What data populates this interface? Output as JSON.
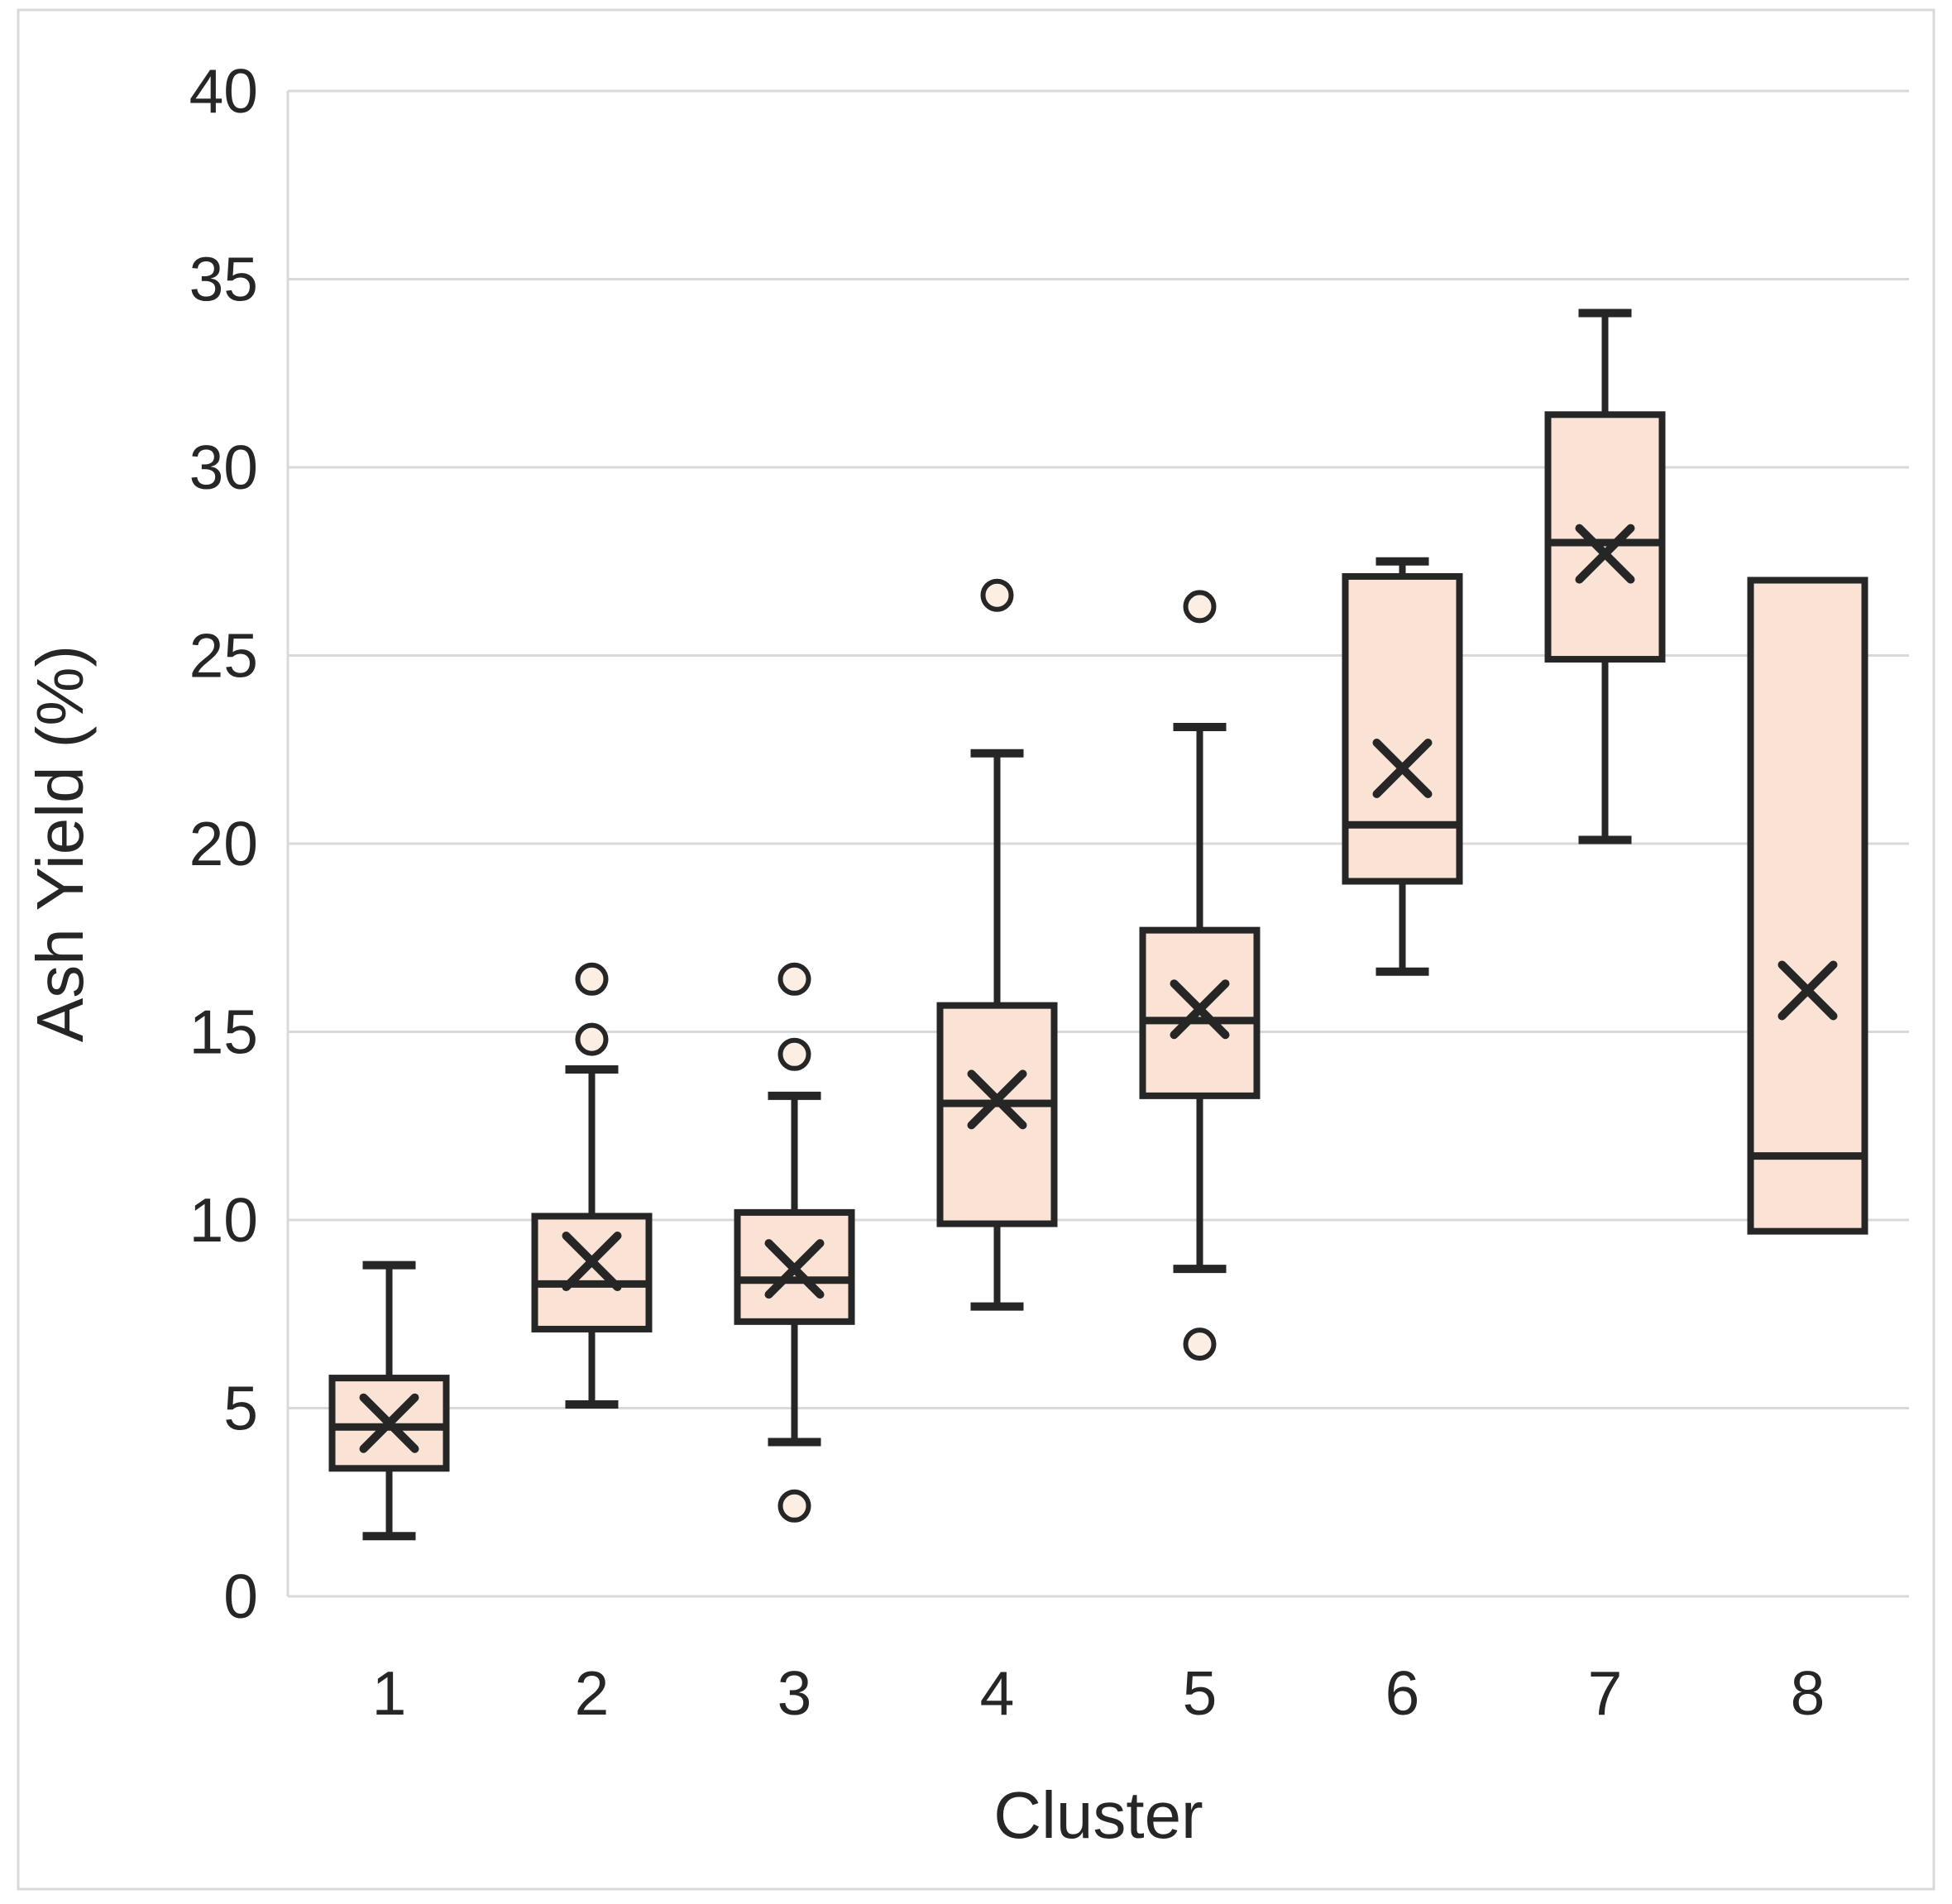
{
  "figure": {
    "background": "#FFFFFF",
    "border_color": "#D9D9D9",
    "grid_color": "#D9D9D9",
    "text_color": "#262626",
    "box_fill": "#FAE3D5",
    "box_stroke": "#262626",
    "outlier_fill": "#FCEEE3"
  },
  "chart_data": {
    "type": "boxplot",
    "title": "",
    "xlabel": "Cluster",
    "ylabel": "Ash Yield (%)",
    "ylim": [
      0,
      40
    ],
    "yticks": [
      0,
      5,
      10,
      15,
      20,
      25,
      30,
      35,
      40
    ],
    "grid": true,
    "legend_position": "none",
    "categories": [
      "1",
      "2",
      "3",
      "4",
      "5",
      "6",
      "7",
      "8"
    ],
    "series": [
      {
        "cluster": "1",
        "whisker_low": 1.6,
        "q1": 3.4,
        "median": 4.5,
        "q3": 5.8,
        "whisker_high": 8.8,
        "mean": 4.6,
        "outliers": []
      },
      {
        "cluster": "2",
        "whisker_low": 5.1,
        "q1": 7.1,
        "median": 8.3,
        "q3": 10.1,
        "whisker_high": 14.0,
        "mean": 8.9,
        "outliers": [
          14.8,
          16.4
        ]
      },
      {
        "cluster": "3",
        "whisker_low": 4.1,
        "q1": 7.3,
        "median": 8.4,
        "q3": 10.2,
        "whisker_high": 13.3,
        "mean": 8.7,
        "outliers": [
          2.4,
          14.4,
          16.4
        ]
      },
      {
        "cluster": "4",
        "whisker_low": 7.7,
        "q1": 9.9,
        "median": 13.1,
        "q3": 15.7,
        "whisker_high": 22.4,
        "mean": 13.2,
        "outliers": [
          26.6
        ]
      },
      {
        "cluster": "5",
        "whisker_low": 8.7,
        "q1": 13.3,
        "median": 15.3,
        "q3": 17.7,
        "whisker_high": 23.1,
        "mean": 15.6,
        "outliers": [
          6.7,
          26.3
        ]
      },
      {
        "cluster": "6",
        "whisker_low": 16.6,
        "q1": 19.0,
        "median": 20.5,
        "q3": 27.1,
        "whisker_high": 27.5,
        "mean": 22.0,
        "outliers": []
      },
      {
        "cluster": "7",
        "whisker_low": 20.1,
        "q1": 24.9,
        "median": 28.0,
        "q3": 31.4,
        "whisker_high": 34.1,
        "mean": 27.7,
        "outliers": []
      },
      {
        "cluster": "8",
        "whisker_low": null,
        "q1": 9.7,
        "median": 11.7,
        "q3": 27.0,
        "whisker_high": null,
        "mean": 16.1,
        "outliers": []
      }
    ]
  },
  "layout_note": ""
}
